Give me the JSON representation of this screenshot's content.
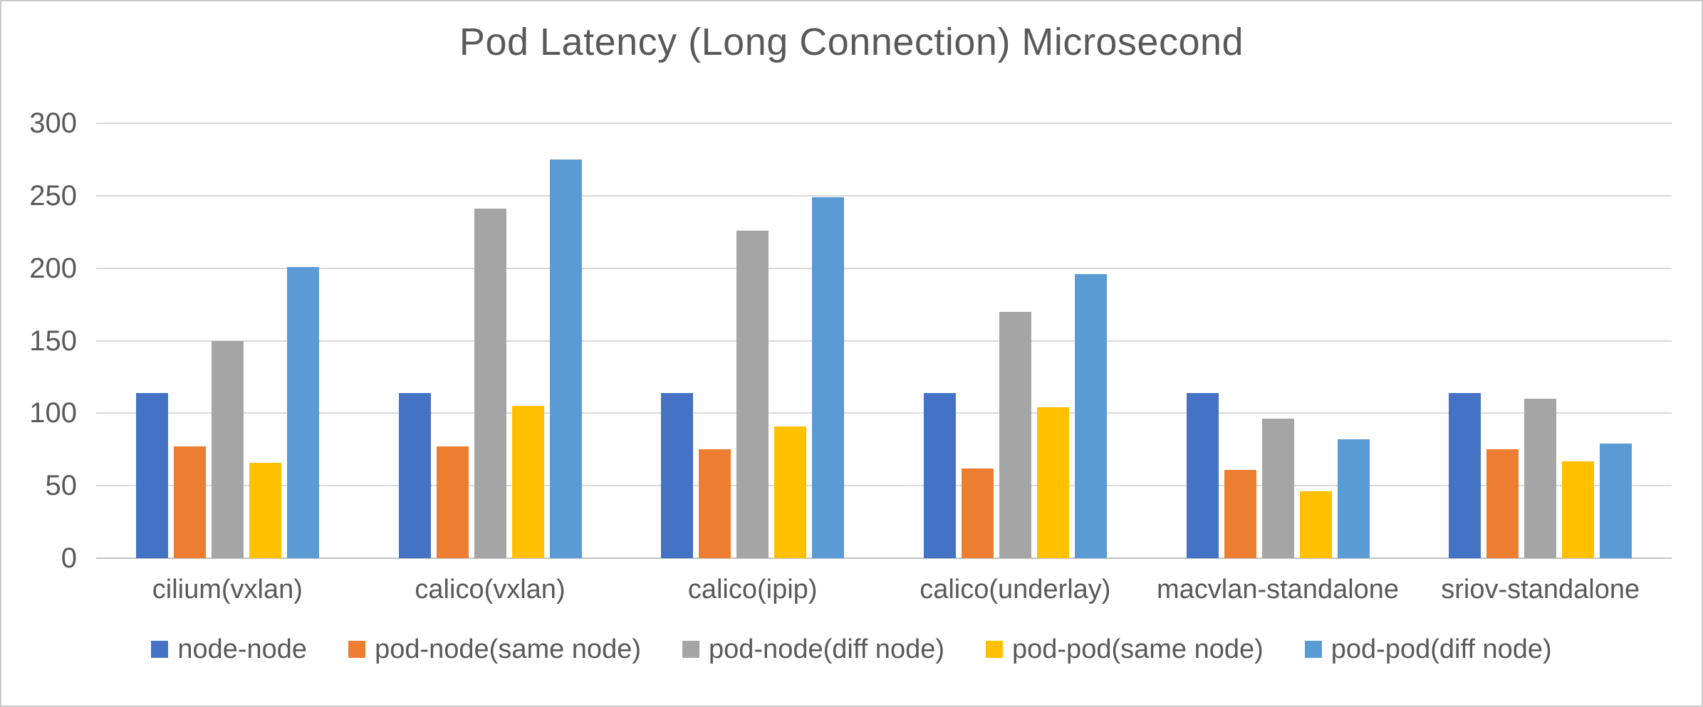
{
  "title": "Pod Latency (Long Connection) Microsecond",
  "colors": {
    "text": "#595959",
    "gridline": "#D9D9D9",
    "axis_line": "#C2C2C2",
    "background": "#FFFFFF",
    "border": "#C9C9C9",
    "series_node_node": "#4472C4",
    "series_pod_node_same": "#ED7D31",
    "series_pod_node_diff": "#A5A5A5",
    "series_pod_pod_same": "#FFC000",
    "series_pod_pod_diff": "#5B9BD5"
  },
  "chart_data": {
    "type": "bar",
    "title": "Pod Latency (Long Connection) Microsecond",
    "xlabel": "",
    "ylabel": "",
    "ylim": [
      0,
      300
    ],
    "yticks": [
      0,
      50,
      100,
      150,
      200,
      250,
      300
    ],
    "grid": true,
    "legend_position": "bottom",
    "categories": [
      "cilium(vxlan)",
      "calico(vxlan)",
      "calico(ipip)",
      "calico(underlay)",
      "macvlan-standalone",
      "sriov-standalone"
    ],
    "series": [
      {
        "name": "node-node",
        "color": "#4472C4",
        "values": [
          114,
          114,
          114,
          114,
          114,
          114
        ]
      },
      {
        "name": "pod-node(same node)",
        "color": "#ED7D31",
        "values": [
          77,
          77,
          75,
          62,
          61,
          75
        ]
      },
      {
        "name": "pod-node(diff node)",
        "color": "#A5A5A5",
        "values": [
          150,
          241,
          226,
          170,
          96,
          110
        ]
      },
      {
        "name": "pod-pod(same node)",
        "color": "#FFC000",
        "values": [
          66,
          105,
          91,
          104,
          46,
          67
        ]
      },
      {
        "name": "pod-pod(diff node)",
        "color": "#5B9BD5",
        "values": [
          201,
          275,
          249,
          196,
          82,
          79
        ]
      }
    ]
  }
}
